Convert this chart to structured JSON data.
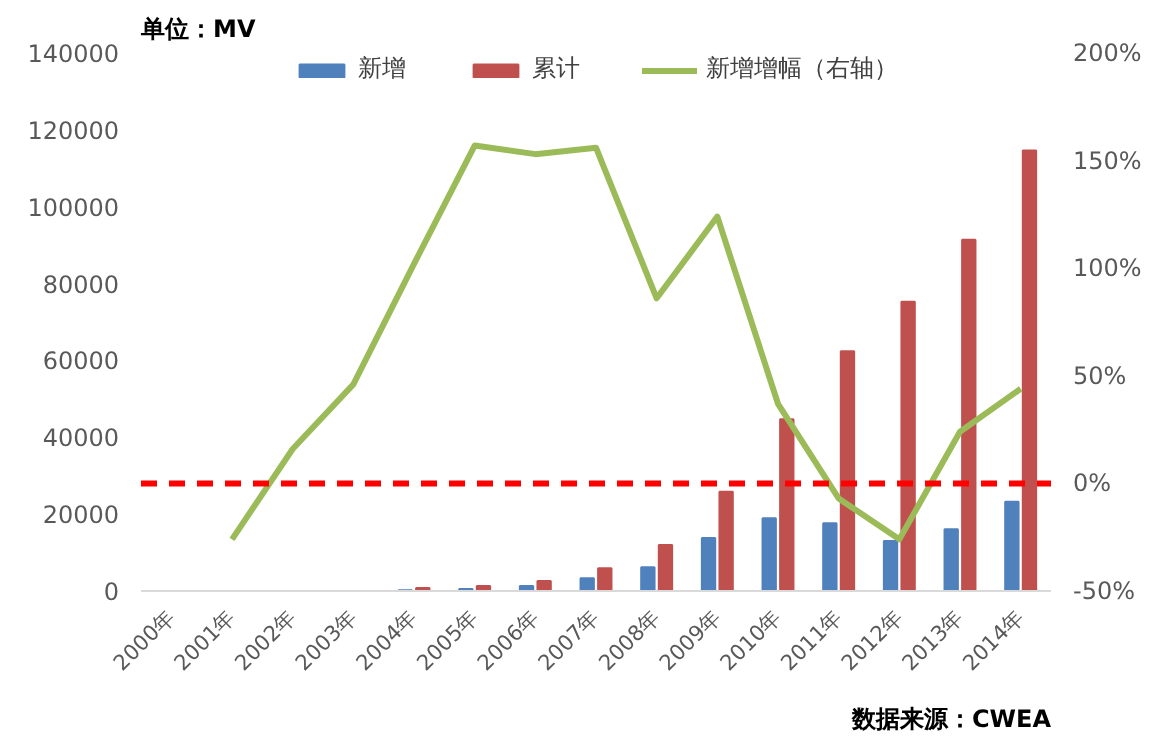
{
  "chart_data": {
    "type": "bar",
    "categories": [
      "2000年",
      "2001年",
      "2002年",
      "2003年",
      "2004年",
      "2005年",
      "2006年",
      "2007年",
      "2008年",
      "2009年",
      "2010年",
      "2011年",
      "2012年",
      "2013年",
      "2014年"
    ],
    "series": [
      {
        "name": "新增",
        "color": "#4f81bd",
        "values": [
          null,
          null,
          null,
          null,
          200,
          500,
          1300,
          3300,
          6200,
          13800,
          18900,
          17600,
          13000,
          16100,
          23200
        ]
      },
      {
        "name": "累计",
        "color": "#c0504d",
        "values": [
          null,
          null,
          null,
          null,
          800,
          1300,
          2600,
          5900,
          12000,
          25800,
          44700,
          62400,
          75300,
          91400,
          114600
        ]
      },
      {
        "name": "新增增幅（右轴）",
        "type": "line",
        "axis": "y2",
        "color": "#9bbb59",
        "values": [
          null,
          -26,
          16,
          46,
          102,
          157,
          153,
          156,
          86,
          124,
          37,
          -7,
          -26,
          24,
          44
        ]
      }
    ],
    "ylim": [
      0,
      140000
    ],
    "yticks": [
      0,
      20000,
      40000,
      60000,
      80000,
      100000,
      120000,
      140000
    ],
    "y2lim": [
      -50,
      200
    ],
    "y2ticks": [
      {
        "value": -50,
        "label": "-50%"
      },
      {
        "value": 0,
        "label": "0%"
      },
      {
        "value": 50,
        "label": "50%"
      },
      {
        "value": 100,
        "label": "100%"
      },
      {
        "value": 150,
        "label": "150%"
      },
      {
        "value": 200,
        "label": "200%"
      }
    ],
    "ref_lines": [
      {
        "axis": "y2",
        "value": 0,
        "color": "#ff0000",
        "line_style": "dashed"
      }
    ],
    "annotations": [
      "单位：MV",
      "数据来源：CWEA"
    ],
    "legend": "top",
    "grid": false
  }
}
